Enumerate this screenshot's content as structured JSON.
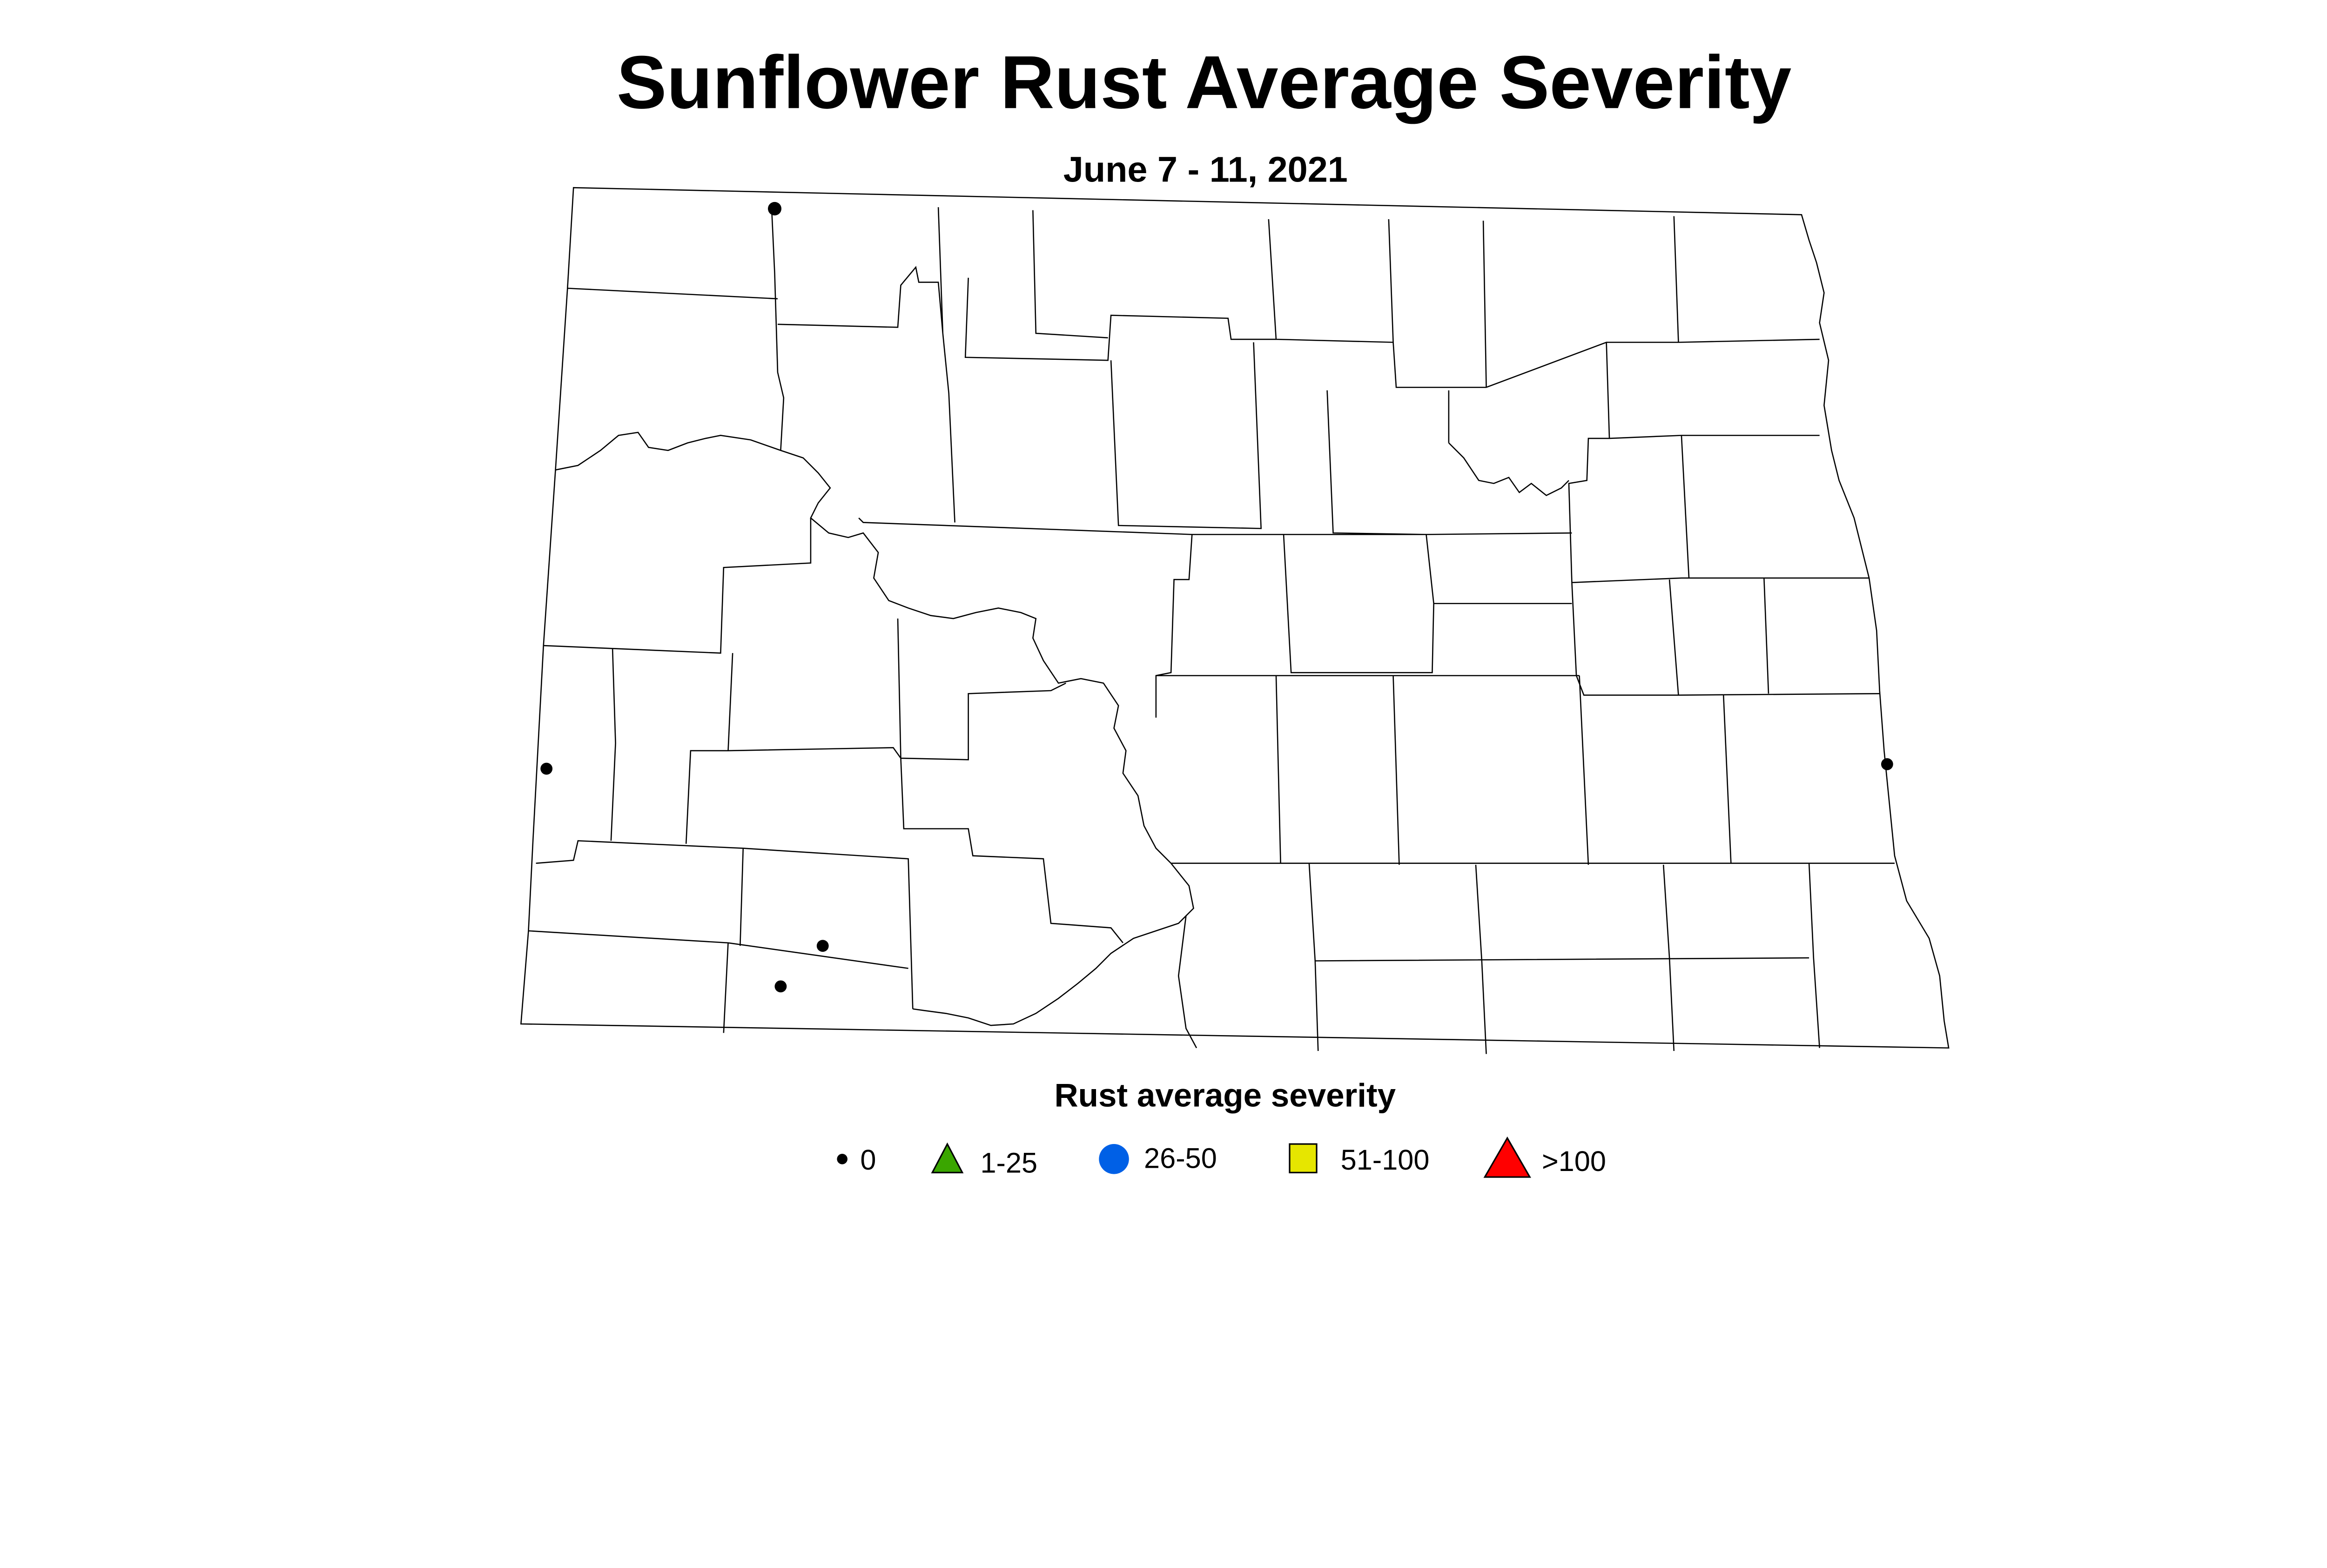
{
  "title": "Sunflower Rust Average Severity",
  "subtitle": "June 7 - 11, 2021",
  "legend": {
    "title": "Rust average severity",
    "items": [
      {
        "label": "0",
        "shape": "dot",
        "color": "#000000"
      },
      {
        "label": "1-25",
        "shape": "triangle",
        "color": "#3aa600"
      },
      {
        "label": "26-50",
        "shape": "circle",
        "color": "#0060e6"
      },
      {
        "label": "51-100",
        "shape": "square",
        "color": "#e6e600"
      },
      {
        "label": ">100",
        "shape": "triangle",
        "color": "#ff0000"
      }
    ]
  },
  "sites": [
    {
      "severity_class": "0"
    },
    {
      "severity_class": "0"
    },
    {
      "severity_class": "0"
    },
    {
      "severity_class": "0"
    },
    {
      "severity_class": "0"
    }
  ]
}
